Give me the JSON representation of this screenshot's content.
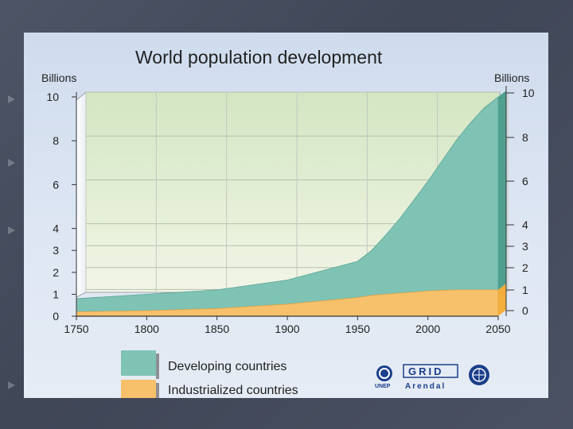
{
  "slide": {
    "bullets": 4
  },
  "chart_data": {
    "type": "area",
    "title": "World population development",
    "left_axis_label": "Billions",
    "right_axis_label": "Billions",
    "x_ticks": [
      "1750",
      "1800",
      "1850",
      "1900",
      "1950",
      "2000",
      "2050"
    ],
    "left_y_ticks": [
      "0",
      "1",
      "2",
      "3",
      "4",
      "6",
      "8",
      "10"
    ],
    "right_y_ticks": [
      "0",
      "1",
      "2",
      "3",
      "4",
      "6",
      "8",
      "10"
    ],
    "xlim": [
      1750,
      2050
    ],
    "ylim": [
      0,
      10
    ],
    "stacked": true,
    "x": [
      1750,
      1800,
      1850,
      1900,
      1950,
      1960,
      1970,
      1980,
      1990,
      2000,
      2010,
      2020,
      2030,
      2040,
      2050
    ],
    "series": [
      {
        "name": "Industrialized countries",
        "color": "#f7c06a",
        "values": [
          0.2,
          0.25,
          0.35,
          0.55,
          0.85,
          0.95,
          1.0,
          1.05,
          1.1,
          1.15,
          1.18,
          1.2,
          1.2,
          1.2,
          1.2
        ]
      },
      {
        "name": "Developing countries",
        "color": "#7fc3b5",
        "values": [
          0.6,
          0.75,
          0.85,
          1.1,
          1.65,
          2.05,
          2.7,
          3.4,
          4.2,
          5.0,
          5.9,
          6.8,
          7.6,
          8.3,
          8.8
        ]
      }
    ],
    "legend": {
      "placement": "bottom-left",
      "items": [
        {
          "label": "Developing countries",
          "color": "#7fc3b5"
        },
        {
          "label": "Industrialized countries",
          "color": "#f7c06a"
        }
      ]
    },
    "grid": true
  },
  "logos": {
    "unep": "UNEP",
    "grid_top": "GRID",
    "grid_bottom": "Arendal"
  }
}
